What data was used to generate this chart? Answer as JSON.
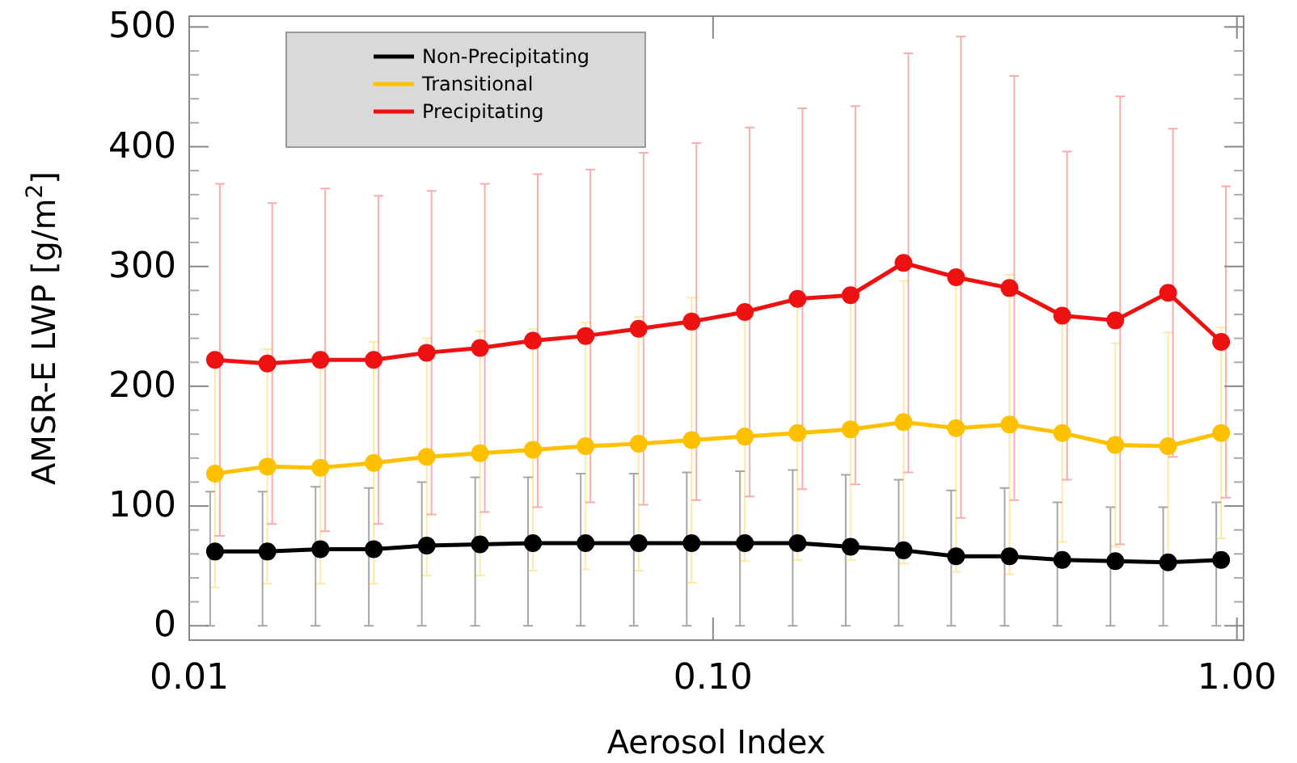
{
  "chart_data": {
    "type": "line",
    "xlabel": "Aerosol Index",
    "ylabel": "AMSR-E LWP [g/m$^{2}$]",
    "log": "x",
    "legend": "top left",
    "marker": "circle",
    "line_style": "solid",
    "grid": false,
    "x": [
      0.0112,
      0.0141,
      0.0178,
      0.0225,
      0.0284,
      0.0359,
      0.0453,
      0.0571,
      0.0721,
      0.091,
      0.115,
      0.145,
      0.183,
      0.231,
      0.291,
      0.368,
      0.464,
      0.586,
      0.739,
      0.933
    ],
    "xlim": [
      0.01,
      1.03
    ],
    "xticks": [
      {
        "value": 0.01,
        "label": "0.01"
      },
      {
        "value": 0.1,
        "label": "0.10"
      },
      {
        "value": 1,
        "label": "1.00"
      }
    ],
    "ylim": [
      -12,
      509
    ],
    "yticks": [
      0,
      100,
      200,
      300,
      400,
      500
    ],
    "series": [
      {
        "name": "Non-Precipitating",
        "color": "#000000",
        "values": [
          62,
          62,
          64,
          64,
          67,
          68,
          69,
          69,
          69,
          69,
          69,
          69,
          66,
          63,
          58,
          58,
          55,
          54,
          53,
          55
        ],
        "errors": [
          [
            0,
            112
          ],
          [
            0,
            112
          ],
          [
            0,
            116
          ],
          [
            0,
            115
          ],
          [
            0,
            120
          ],
          [
            0,
            124
          ],
          [
            0,
            124
          ],
          [
            0,
            127
          ],
          [
            0,
            127
          ],
          [
            0,
            128
          ],
          [
            0,
            129
          ],
          [
            0,
            130
          ],
          [
            0,
            126
          ],
          [
            0,
            122
          ],
          [
            0,
            113
          ],
          [
            0,
            115
          ],
          [
            0,
            103
          ],
          [
            0,
            99
          ],
          [
            0,
            99
          ],
          [
            0,
            103
          ]
        ]
      },
      {
        "name": "Transitional",
        "color": "#ffc000",
        "values": [
          127,
          133,
          132,
          136,
          141,
          144,
          147,
          150,
          152,
          155,
          158,
          161,
          164,
          170,
          165,
          168,
          161,
          151,
          150,
          161
        ],
        "errors": [
          95,
          98,
          97,
          101,
          99,
          102,
          101,
          103,
          106,
          119,
          104,
          106,
          109,
          118,
          120,
          125,
          91,
          85,
          95,
          88
        ]
      },
      {
        "name": "Precipitating",
        "color": "#ee1111",
        "values": [
          222,
          219,
          222,
          222,
          228,
          232,
          238,
          242,
          248,
          254,
          262,
          273,
          276,
          303,
          291,
          282,
          259,
          255,
          278,
          237
        ],
        "errors": [
          147,
          134,
          143,
          137,
          135,
          137,
          139,
          139,
          147,
          149,
          154,
          159,
          158,
          175,
          201,
          177,
          137,
          187,
          137,
          130
        ]
      }
    ]
  }
}
